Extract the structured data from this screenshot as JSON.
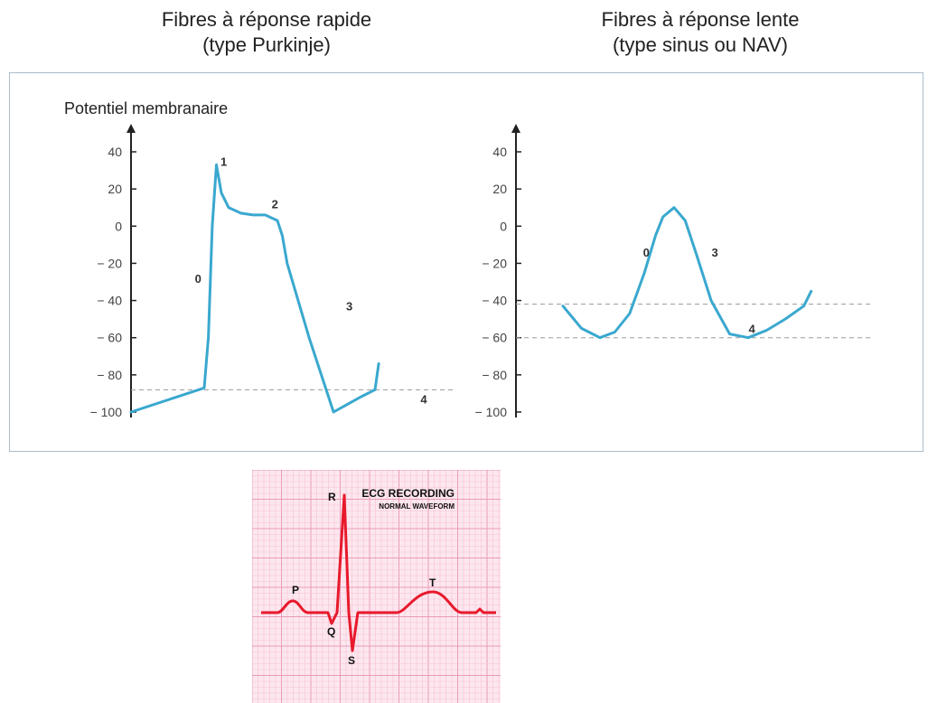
{
  "chart_data": [
    {
      "type": "line",
      "title": "Fibres à réponse rapide",
      "subtitle": "(type Purkinje)",
      "ylabel": "Potentiel membranaire",
      "ylim": [
        -100,
        40
      ],
      "yticks": [
        "40",
        "20",
        "0",
        "− 20",
        "− 40",
        "− 60",
        "− 80",
        "− 100"
      ],
      "ytick_values": [
        40,
        20,
        0,
        -20,
        -40,
        -60,
        -80,
        -100
      ],
      "threshold_lines": [
        -88
      ],
      "series": [
        {
          "x": [
            0,
            30,
            31.7,
            33.3,
            35,
            37,
            40,
            45,
            50,
            55,
            60,
            62,
            64,
            73,
            83,
            94,
            100
          ],
          "y": [
            -100,
            -87,
            -60,
            0,
            33,
            18,
            10,
            7,
            6,
            6,
            3,
            -5,
            -20,
            -60,
            -100,
            -92,
            -88
          ]
        },
        {
          "x": [
            100,
            101.5
          ],
          "y": [
            -88,
            -74
          ]
        }
      ],
      "phase_labels": [
        {
          "text": "0",
          "x": 27.5,
          "y": -28
        },
        {
          "text": "1",
          "x": 38,
          "y": 35
        },
        {
          "text": "2",
          "x": 59,
          "y": 12
        },
        {
          "text": "3",
          "x": 89.5,
          "y": -43
        },
        {
          "text": "4",
          "x": 120,
          "y": -93
        }
      ]
    },
    {
      "type": "line",
      "title": "Fibres à réponse lente",
      "subtitle": "(type sinus ou NAV)",
      "ylim": [
        -100,
        40
      ],
      "yticks": [
        "40",
        "20",
        "0",
        "− 20",
        "− 40",
        "− 60",
        "− 80",
        "− 100"
      ],
      "ytick_values": [
        40,
        20,
        0,
        -20,
        -40,
        -60,
        -80,
        -100
      ],
      "threshold_lines": [
        -42,
        -60
      ],
      "series": [
        {
          "x": [
            0,
            10,
            20,
            28,
            36,
            44,
            50,
            54,
            60,
            66,
            72,
            80,
            90,
            100
          ],
          "y": [
            -43,
            -55,
            -60,
            -57,
            -47,
            -25,
            -5,
            5,
            10,
            3,
            -15,
            -40,
            -58,
            -60
          ]
        },
        {
          "x": [
            100,
            110,
            120,
            130,
            134
          ],
          "y": [
            -60,
            -56,
            -50,
            -43,
            -35
          ]
        }
      ],
      "phase_labels": [
        {
          "text": "0",
          "x": 45,
          "y": -14
        },
        {
          "text": "3",
          "x": 82,
          "y": -14
        },
        {
          "text": "4",
          "x": 102,
          "y": -55
        }
      ]
    },
    {
      "type": "line",
      "title": "ECG RECORDING",
      "subtitle": "NORMAL WAVEFORM",
      "wave_labels": [
        "P",
        "Q",
        "R",
        "S",
        "T"
      ],
      "colors": {
        "trace": "#e8192c",
        "grid_minor": "#f5c1d3",
        "grid_major": "#ea9bb8",
        "background": "#fde7ef"
      }
    }
  ]
}
